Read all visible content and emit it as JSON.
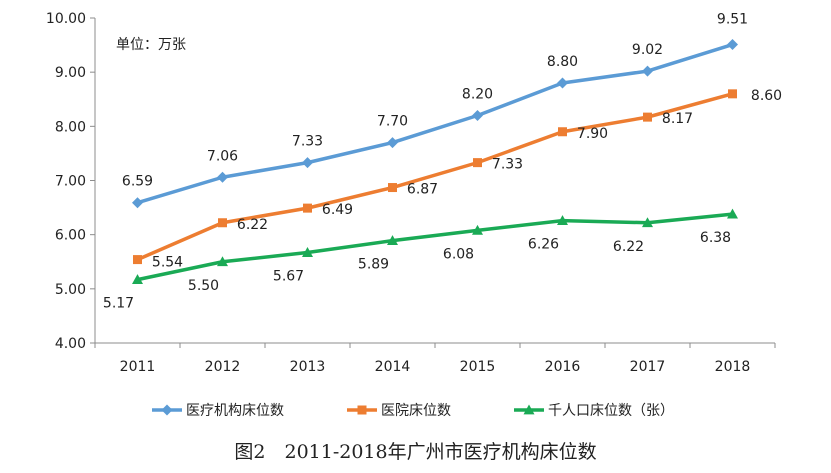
{
  "caption": "图2　2011-2018年广州市医疗机构床位数",
  "chart_data": {
    "type": "line",
    "unit_label": "单位：万张",
    "categories": [
      "2011",
      "2012",
      "2013",
      "2014",
      "2015",
      "2016",
      "2017",
      "2018"
    ],
    "ylim": [
      4.0,
      10.0
    ],
    "yticks": [
      4.0,
      5.0,
      6.0,
      7.0,
      8.0,
      9.0,
      10.0
    ],
    "ytick_labels": [
      "4.00",
      "5.00",
      "6.00",
      "7.00",
      "8.00",
      "9.00",
      "10.00"
    ],
    "grid": false,
    "legend_position": "bottom",
    "series": [
      {
        "name": "医疗机构床位数",
        "values": [
          6.59,
          7.06,
          7.33,
          7.7,
          8.2,
          8.8,
          9.02,
          9.51
        ],
        "labels": [
          "6.59",
          "7.06",
          "7.33",
          "7.70",
          "8.20",
          "8.80",
          "9.02",
          "9.51"
        ],
        "color": "#5b9bd5",
        "marker": "diamond"
      },
      {
        "name": "医院床位数",
        "values": [
          5.54,
          6.22,
          6.49,
          6.87,
          7.33,
          7.9,
          8.17,
          8.6
        ],
        "labels": [
          "5.54",
          "6.22",
          "6.49",
          "6.87",
          "7.33",
          "7.90",
          "8.17",
          "8.60"
        ],
        "color": "#ed7d31",
        "marker": "square"
      },
      {
        "name": "千人口床位数（张）",
        "values": [
          5.17,
          5.5,
          5.67,
          5.89,
          6.08,
          6.26,
          6.22,
          6.38
        ],
        "labels": [
          "5.17",
          "5.50",
          "5.67",
          "5.89",
          "6.08",
          "6.26",
          "6.22",
          "6.38"
        ],
        "color": "#1aaa55",
        "marker": "triangle"
      }
    ]
  }
}
